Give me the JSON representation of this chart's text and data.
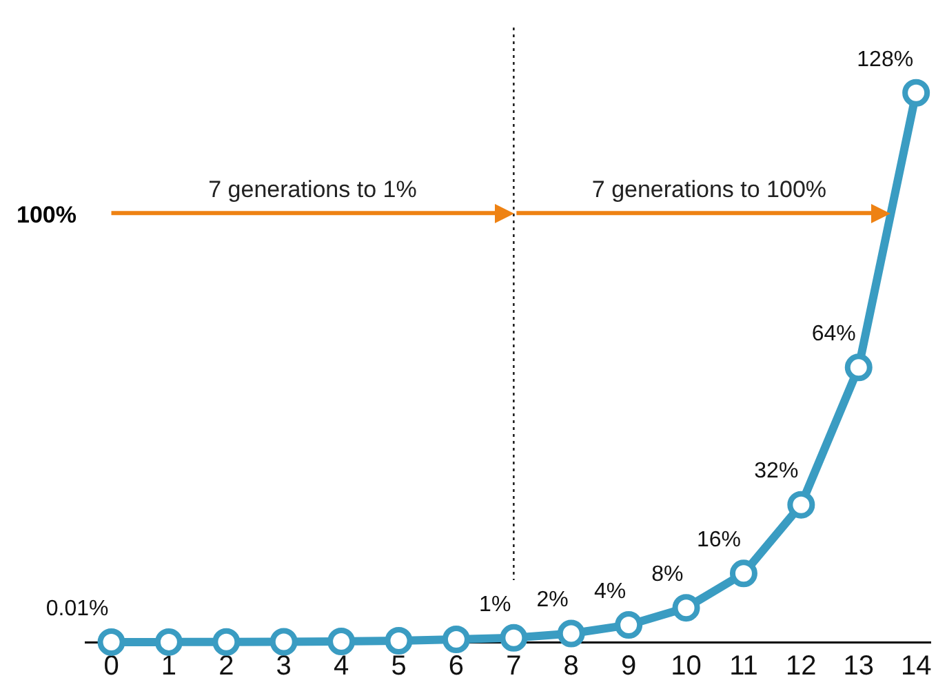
{
  "chart_data": {
    "type": "line",
    "x": [
      0,
      1,
      2,
      3,
      4,
      5,
      6,
      7,
      8,
      9,
      10,
      11,
      12,
      13,
      14
    ],
    "series": [
      {
        "color": "#3a9cc2",
        "values": [
          0.01,
          0.02,
          0.04,
          0.08,
          0.16,
          0.32,
          0.64,
          1,
          2,
          4,
          8,
          16,
          32,
          64,
          128
        ],
        "value_labels": [
          "0.01%",
          null,
          null,
          null,
          null,
          null,
          null,
          "1%",
          "2%",
          "4%",
          "8%",
          "16%",
          "32%",
          "64%",
          "128%"
        ]
      }
    ],
    "xlim": [
      -0.45,
      14.25
    ],
    "xticks": [
      0,
      1,
      2,
      3,
      4,
      5,
      6,
      7,
      8,
      9,
      10,
      11,
      12,
      13,
      14
    ],
    "tick_labels": "x",
    "grid": false,
    "legend": false,
    "marker": "circle",
    "line_style": "solid",
    "ref_lines": [
      {
        "axis": "y",
        "value": 100,
        "label": "100%",
        "color": "#ee8213"
      },
      {
        "axis": "x",
        "value": 7,
        "color": "#222222",
        "line_style": "dotted"
      }
    ],
    "annotations": [
      {
        "text": "7 generations to 1%",
        "x": 3.5,
        "y": 100
      },
      {
        "text": "7 generations to 100%",
        "x": 10.4,
        "y": 100
      }
    ]
  }
}
